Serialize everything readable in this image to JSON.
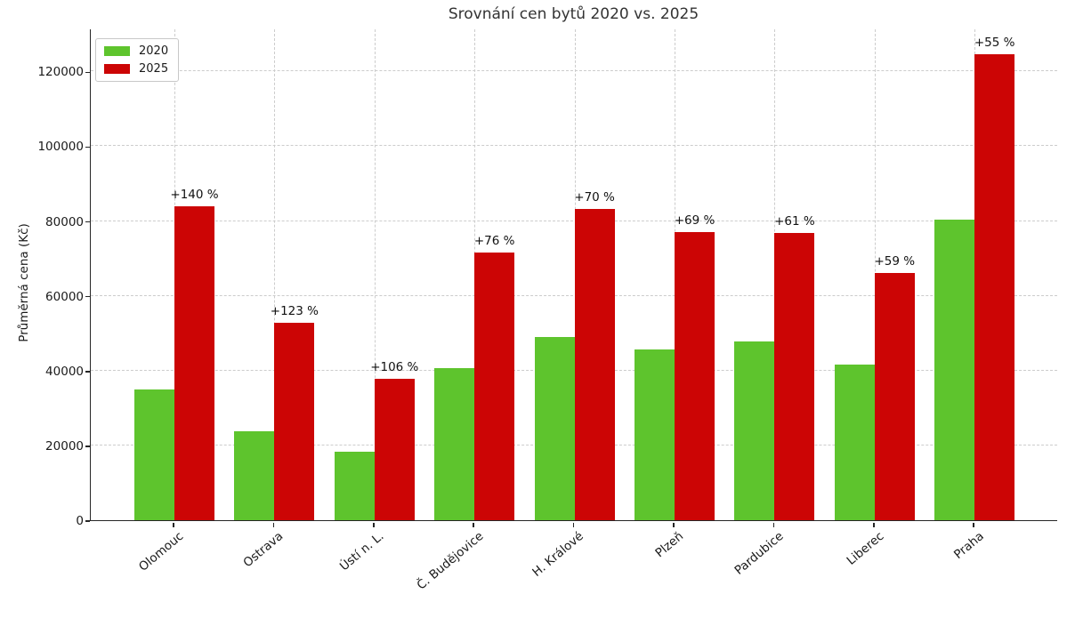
{
  "page": {
    "background": "#ffffff"
  },
  "chart_data": {
    "type": "bar",
    "title": "Srovnání cen bytů 2020 vs. 2025",
    "ylabel": "Průměrná cena (Kč)",
    "xlabel": "",
    "categories": [
      "Olomouc",
      "Ostrava",
      "Ústí n. L.",
      "Č. Budějovice",
      "H. Králové",
      "Plzeň",
      "Pardubice",
      "Liberec",
      "Praha"
    ],
    "series": [
      {
        "name": "2020",
        "color": "#5ec42d",
        "values": [
          35000,
          23700,
          18400,
          40700,
          49000,
          45600,
          47700,
          41500,
          80400
        ]
      },
      {
        "name": "2025",
        "color": "#cc0505",
        "values": [
          84000,
          52900,
          37900,
          71600,
          83300,
          77100,
          76800,
          66100,
          124600
        ]
      }
    ],
    "bar_labels": {
      "above_series": "2025",
      "values": [
        "+140 %",
        "+123 %",
        "+106 %",
        "+76 %",
        "+70 %",
        "+69 %",
        "+61 %",
        "+59 %",
        "+55 %"
      ]
    },
    "yticks": [
      0,
      20000,
      40000,
      60000,
      80000,
      100000,
      120000
    ],
    "ylim": [
      0,
      131500
    ],
    "grid": {
      "horizontal": "dashed",
      "vertical": "dashed",
      "color": "#cccccc"
    },
    "legend": {
      "position": "upper-left",
      "items": [
        "2020",
        "2025"
      ]
    }
  },
  "style": {
    "accent_green": "#5ec42d",
    "accent_red": "#cc0505",
    "grid_color": "#cccccc",
    "axis_color": "#262626",
    "text_color": "#1a1a1a",
    "title_color": "#333333"
  }
}
